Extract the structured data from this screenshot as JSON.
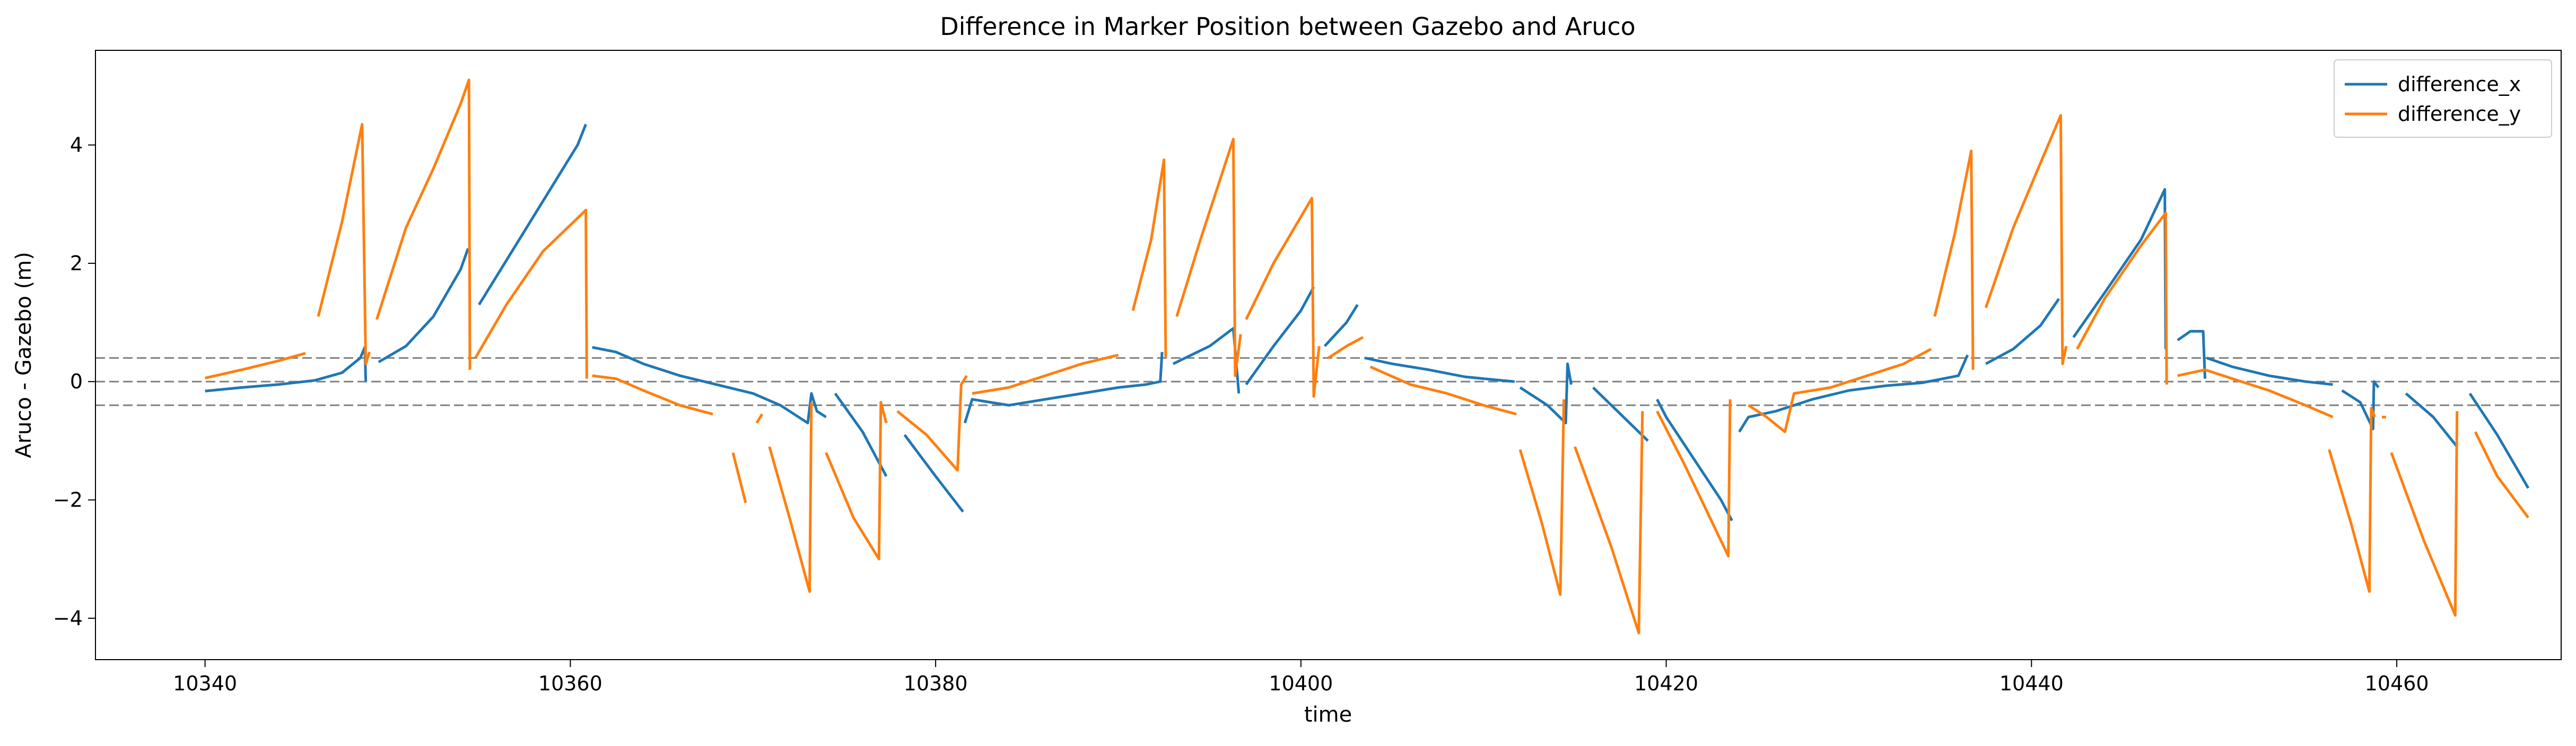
{
  "chart_data": {
    "type": "line",
    "title": "Difference in Marker Position between Gazebo and Aruco",
    "xlabel": "time",
    "ylabel": "Aruco - Gazebo (m)",
    "xlim": [
      10334,
      10469
    ],
    "ylim": [
      -4.7,
      5.6
    ],
    "xticks": [
      10340,
      10360,
      10380,
      10400,
      10420,
      10440,
      10460
    ],
    "yticks": [
      -4,
      -2,
      0,
      2,
      4
    ],
    "grid": false,
    "legend": {
      "position": "top-right"
    },
    "reference_lines": {
      "values": [
        0.4,
        0.0,
        -0.4
      ],
      "style": "dashed",
      "color": "#808080"
    },
    "series": [
      {
        "name": "difference_x",
        "color": "#1f77b4",
        "segments": [
          [
            [
              10340.0,
              -0.16
            ],
            [
              10342.0,
              -0.1
            ],
            [
              10344.0,
              -0.05
            ],
            [
              10346.0,
              0.02
            ],
            [
              10347.5,
              0.15
            ],
            [
              10348.5,
              0.4
            ],
            [
              10348.75,
              0.58
            ],
            [
              10348.8,
              0.0
            ]
          ],
          [
            [
              10349.5,
              0.33
            ],
            [
              10351.0,
              0.6
            ],
            [
              10352.5,
              1.1
            ],
            [
              10354.0,
              1.9
            ],
            [
              10354.4,
              2.25
            ]
          ],
          [
            [
              10355.0,
              1.3
            ],
            [
              10357.0,
              2.3
            ],
            [
              10359.0,
              3.3
            ],
            [
              10360.4,
              4.0
            ],
            [
              10360.85,
              4.35
            ]
          ],
          [
            [
              10361.2,
              0.58
            ],
            [
              10362.5,
              0.5
            ],
            [
              10364.0,
              0.3
            ],
            [
              10366.0,
              0.1
            ],
            [
              10368.0,
              -0.05
            ],
            [
              10370.0,
              -0.2
            ],
            [
              10371.5,
              -0.4
            ],
            [
              10372.5,
              -0.6
            ],
            [
              10373.0,
              -0.7
            ],
            [
              10373.2,
              -0.2
            ],
            [
              10373.5,
              -0.5
            ],
            [
              10374.0,
              -0.6
            ]
          ],
          [
            [
              10374.5,
              -0.2
            ],
            [
              10376.0,
              -0.85
            ],
            [
              10377.3,
              -1.6
            ]
          ],
          [
            [
              10378.3,
              -0.9
            ],
            [
              10380.0,
              -1.6
            ],
            [
              10381.5,
              -2.2
            ]
          ],
          [
            [
              10381.6,
              -0.7
            ],
            [
              10382.0,
              -0.3
            ],
            [
              10384.0,
              -0.4
            ],
            [
              10386.0,
              -0.3
            ],
            [
              10388.0,
              -0.2
            ],
            [
              10390.0,
              -0.1
            ],
            [
              10391.5,
              -0.05
            ],
            [
              10392.3,
              0.0
            ],
            [
              10392.4,
              0.5
            ]
          ],
          [
            [
              10393.0,
              0.3
            ],
            [
              10395.0,
              0.6
            ],
            [
              10396.3,
              0.9
            ],
            [
              10396.6,
              -0.2
            ]
          ],
          [
            [
              10397.0,
              -0.05
            ],
            [
              10398.5,
              0.6
            ],
            [
              10400.0,
              1.2
            ],
            [
              10400.7,
              1.6
            ]
          ],
          [
            [
              10401.3,
              0.6
            ],
            [
              10402.5,
              1.0
            ],
            [
              10403.1,
              1.3
            ]
          ],
          [
            [
              10403.5,
              0.4
            ],
            [
              10405.0,
              0.3
            ],
            [
              10407.0,
              0.2
            ],
            [
              10409.0,
              0.08
            ],
            [
              10411.0,
              0.02
            ],
            [
              10411.7,
              0.0
            ]
          ],
          [
            [
              10412.0,
              -0.1
            ],
            [
              10413.5,
              -0.4
            ],
            [
              10414.5,
              -0.7
            ],
            [
              10414.6,
              0.3
            ],
            [
              10414.8,
              -0.05
            ]
          ],
          [
            [
              10416.0,
              -0.1
            ],
            [
              10417.5,
              -0.55
            ],
            [
              10419.0,
              -1.0
            ]
          ],
          [
            [
              10419.5,
              -0.3
            ],
            [
              10420.0,
              -0.6
            ],
            [
              10421.5,
              -1.3
            ],
            [
              10423.0,
              -2.0
            ],
            [
              10423.6,
              -2.35
            ]
          ],
          [
            [
              10424.0,
              -0.85
            ],
            [
              10424.5,
              -0.6
            ],
            [
              10426.0,
              -0.5
            ],
            [
              10428.0,
              -0.3
            ],
            [
              10430.0,
              -0.15
            ],
            [
              10432.0,
              -0.07
            ],
            [
              10434.0,
              -0.02
            ],
            [
              10436.0,
              0.1
            ],
            [
              10436.5,
              0.45
            ]
          ],
          [
            [
              10437.5,
              0.3
            ],
            [
              10439.0,
              0.55
            ],
            [
              10440.5,
              0.95
            ],
            [
              10441.5,
              1.4
            ]
          ],
          [
            [
              10442.3,
              0.75
            ],
            [
              10444.0,
              1.5
            ],
            [
              10446.0,
              2.4
            ],
            [
              10447.3,
              3.25
            ],
            [
              10447.35,
              0.55
            ]
          ],
          [
            [
              10448.0,
              0.7
            ],
            [
              10448.7,
              0.85
            ],
            [
              10449.4,
              0.85
            ],
            [
              10449.5,
              0.05
            ]
          ],
          [
            [
              10449.6,
              0.4
            ],
            [
              10451.0,
              0.25
            ],
            [
              10453.0,
              0.1
            ],
            [
              10455.0,
              0.0
            ],
            [
              10456.5,
              -0.05
            ]
          ],
          [
            [
              10457.0,
              -0.15
            ],
            [
              10458.0,
              -0.35
            ],
            [
              10458.7,
              -0.8
            ],
            [
              10458.75,
              0.0
            ],
            [
              10459.0,
              -0.1
            ]
          ],
          [
            [
              10460.5,
              -0.2
            ],
            [
              10462.0,
              -0.6
            ],
            [
              10463.3,
              -1.1
            ]
          ],
          [
            [
              10464.0,
              -0.2
            ],
            [
              10465.5,
              -0.9
            ],
            [
              10467.2,
              -1.8
            ]
          ]
        ]
      },
      {
        "name": "difference_y",
        "color": "#ff7f0e",
        "segments": [
          [
            [
              10340.0,
              0.06
            ],
            [
              10342.0,
              0.2
            ],
            [
              10344.0,
              0.35
            ],
            [
              10345.5,
              0.48
            ]
          ],
          [
            [
              10346.2,
              1.1
            ],
            [
              10347.5,
              2.7
            ],
            [
              10348.6,
              4.35
            ],
            [
              10348.8,
              0.3
            ],
            [
              10349.0,
              0.5
            ]
          ],
          [
            [
              10349.4,
              1.05
            ],
            [
              10351.0,
              2.6
            ],
            [
              10352.5,
              3.6
            ],
            [
              10354.0,
              4.7
            ],
            [
              10354.45,
              5.1
            ],
            [
              10354.5,
              0.2
            ]
          ],
          [
            [
              10354.8,
              0.4
            ],
            [
              10356.5,
              1.3
            ],
            [
              10358.5,
              2.2
            ],
            [
              10360.85,
              2.9
            ],
            [
              10360.9,
              0.05
            ]
          ],
          [
            [
              10361.2,
              0.1
            ],
            [
              10362.5,
              0.05
            ],
            [
              10364.0,
              -0.15
            ],
            [
              10366.0,
              -0.4
            ],
            [
              10367.8,
              -0.55
            ]
          ],
          [
            [
              10368.9,
              -1.2
            ],
            [
              10369.6,
              -2.05
            ]
          ],
          [
            [
              10370.2,
              -0.7
            ],
            [
              10370.5,
              -0.55
            ]
          ],
          [
            [
              10370.9,
              -1.1
            ],
            [
              10372.0,
              -2.3
            ],
            [
              10373.1,
              -3.55
            ],
            [
              10373.2,
              -0.35
            ]
          ],
          [
            [
              10374.0,
              -1.2
            ],
            [
              10375.5,
              -2.3
            ],
            [
              10376.9,
              -3.0
            ],
            [
              10377.0,
              -0.35
            ],
            [
              10377.3,
              -0.7
            ]
          ],
          [
            [
              10377.9,
              -0.5
            ],
            [
              10379.5,
              -0.9
            ],
            [
              10381.2,
              -1.5
            ],
            [
              10381.4,
              -0.05
            ],
            [
              10381.7,
              0.1
            ]
          ],
          [
            [
              10382.0,
              -0.2
            ],
            [
              10384.0,
              -0.1
            ],
            [
              10386.0,
              0.1
            ],
            [
              10388.0,
              0.3
            ],
            [
              10390.0,
              0.45
            ]
          ],
          [
            [
              10390.8,
              1.2
            ],
            [
              10391.8,
              2.4
            ],
            [
              10392.5,
              3.75
            ],
            [
              10392.6,
              0.4
            ]
          ],
          [
            [
              10393.2,
              1.1
            ],
            [
              10394.5,
              2.4
            ],
            [
              10396.3,
              4.1
            ],
            [
              10396.4,
              0.1
            ],
            [
              10396.7,
              0.8
            ]
          ],
          [
            [
              10397.0,
              1.05
            ],
            [
              10398.5,
              2.0
            ],
            [
              10400.6,
              3.1
            ],
            [
              10400.7,
              -0.25
            ],
            [
              10401.0,
              0.6
            ]
          ],
          [
            [
              10401.5,
              0.4
            ],
            [
              10402.5,
              0.6
            ],
            [
              10403.4,
              0.75
            ]
          ],
          [
            [
              10403.8,
              0.25
            ],
            [
              10406.0,
              -0.05
            ],
            [
              10408.0,
              -0.2
            ],
            [
              10410.0,
              -0.4
            ],
            [
              10411.8,
              -0.55
            ]
          ],
          [
            [
              10412.0,
              -1.15
            ],
            [
              10413.2,
              -2.4
            ],
            [
              10414.2,
              -3.6
            ],
            [
              10414.4,
              -0.3
            ]
          ],
          [
            [
              10415.0,
              -1.1
            ],
            [
              10417.0,
              -2.8
            ],
            [
              10418.5,
              -4.25
            ],
            [
              10418.7,
              -0.5
            ]
          ],
          [
            [
              10419.5,
              -0.5
            ],
            [
              10421.0,
              -1.4
            ],
            [
              10423.4,
              -2.95
            ],
            [
              10423.5,
              -0.3
            ]
          ],
          [
            [
              10424.5,
              -0.4
            ],
            [
              10425.5,
              -0.6
            ],
            [
              10426.5,
              -0.85
            ],
            [
              10427.0,
              -0.2
            ],
            [
              10429.0,
              -0.1
            ],
            [
              10431.0,
              0.1
            ],
            [
              10433.0,
              0.3
            ],
            [
              10434.5,
              0.55
            ]
          ],
          [
            [
              10434.7,
              1.1
            ],
            [
              10435.8,
              2.5
            ],
            [
              10436.7,
              3.9
            ],
            [
              10436.8,
              0.2
            ]
          ],
          [
            [
              10437.5,
              1.25
            ],
            [
              10439.0,
              2.6
            ],
            [
              10440.5,
              3.7
            ],
            [
              10441.6,
              4.5
            ],
            [
              10441.7,
              0.3
            ],
            [
              10441.9,
              0.6
            ]
          ],
          [
            [
              10442.5,
              0.55
            ],
            [
              10444.0,
              1.4
            ],
            [
              10446.0,
              2.3
            ],
            [
              10447.35,
              2.85
            ],
            [
              10447.4,
              -0.05
            ]
          ],
          [
            [
              10448.0,
              0.1
            ],
            [
              10449.5,
              0.2
            ],
            [
              10451.0,
              0.05
            ],
            [
              10453.0,
              -0.15
            ],
            [
              10455.0,
              -0.4
            ],
            [
              10456.5,
              -0.6
            ]
          ],
          [
            [
              10456.3,
              -1.15
            ],
            [
              10457.5,
              -2.4
            ],
            [
              10458.5,
              -3.55
            ],
            [
              10458.6,
              -0.45
            ],
            [
              10458.8,
              -0.6
            ]
          ],
          [
            [
              10459.3,
              -0.6
            ]
          ],
          [
            [
              10459.7,
              -1.2
            ],
            [
              10461.5,
              -2.7
            ],
            [
              10463.2,
              -3.95
            ],
            [
              10463.3,
              -0.5
            ]
          ],
          [
            [
              10464.3,
              -0.85
            ],
            [
              10465.5,
              -1.6
            ],
            [
              10467.2,
              -2.3
            ]
          ]
        ]
      }
    ]
  }
}
